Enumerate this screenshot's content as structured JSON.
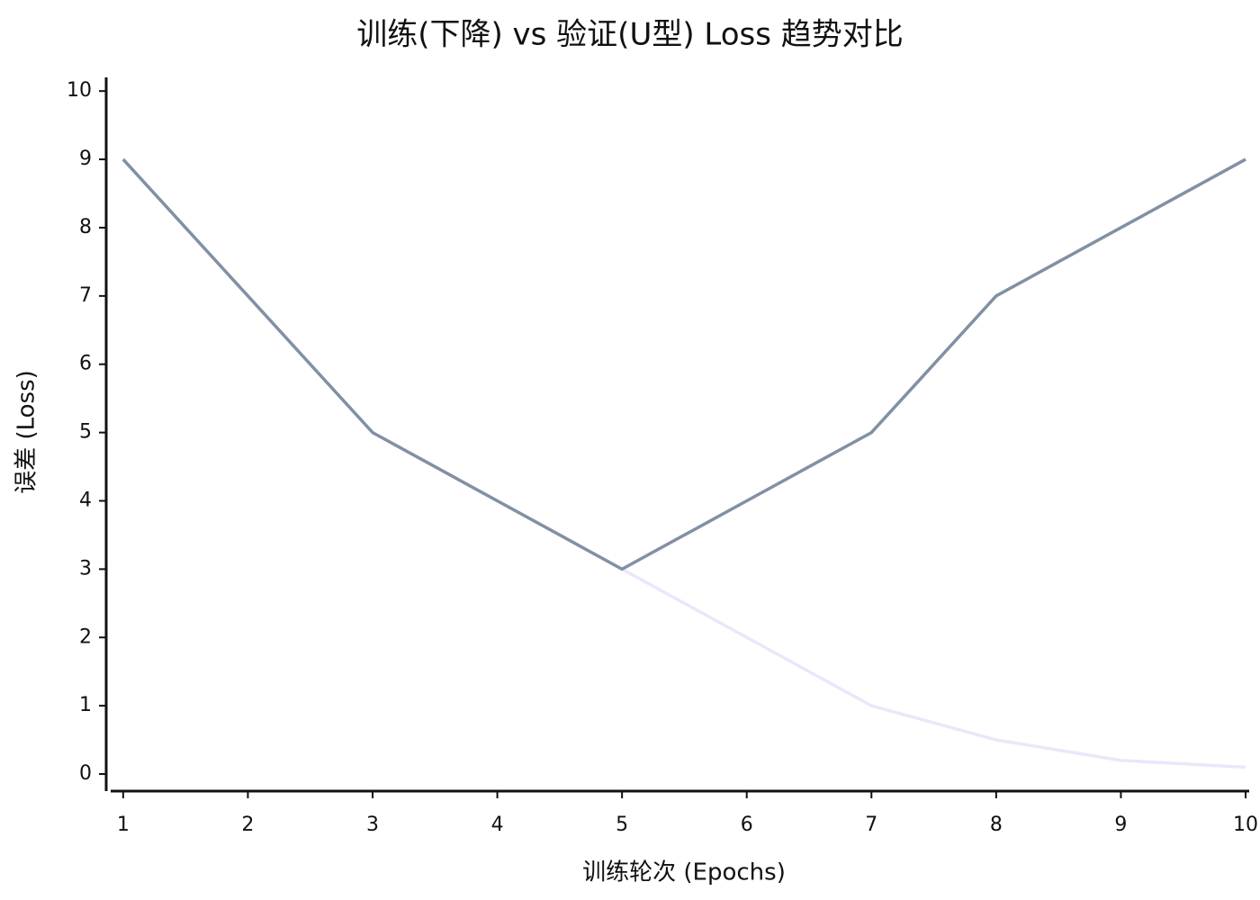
{
  "chart_data": {
    "type": "line",
    "title": "训练(下降) vs 验证(U型) Loss 趋势对比",
    "x_label": "训练轮次 (Epochs)",
    "y_label": "误差 (Loss)",
    "x": [
      1,
      2,
      3,
      4,
      5,
      6,
      7,
      8,
      9,
      10
    ],
    "series": [
      {
        "color": "#e8e8fb",
        "values": [
          9,
          7,
          5,
          4,
          3,
          2,
          1,
          0.5,
          0.2,
          0.1
        ]
      },
      {
        "color": "#8290a4",
        "values": [
          9,
          7,
          5,
          4,
          3,
          4,
          5,
          7,
          8,
          9
        ]
      }
    ],
    "xlim": [
      0.9,
      10
    ],
    "ylim": [
      -0.25,
      10.2
    ],
    "xticks": [
      1,
      2,
      3,
      4,
      5,
      6,
      7,
      8,
      9,
      10
    ],
    "yticks": [
      0,
      1,
      2,
      3,
      4,
      5,
      6,
      7,
      8,
      9,
      10
    ],
    "grid": false
  }
}
